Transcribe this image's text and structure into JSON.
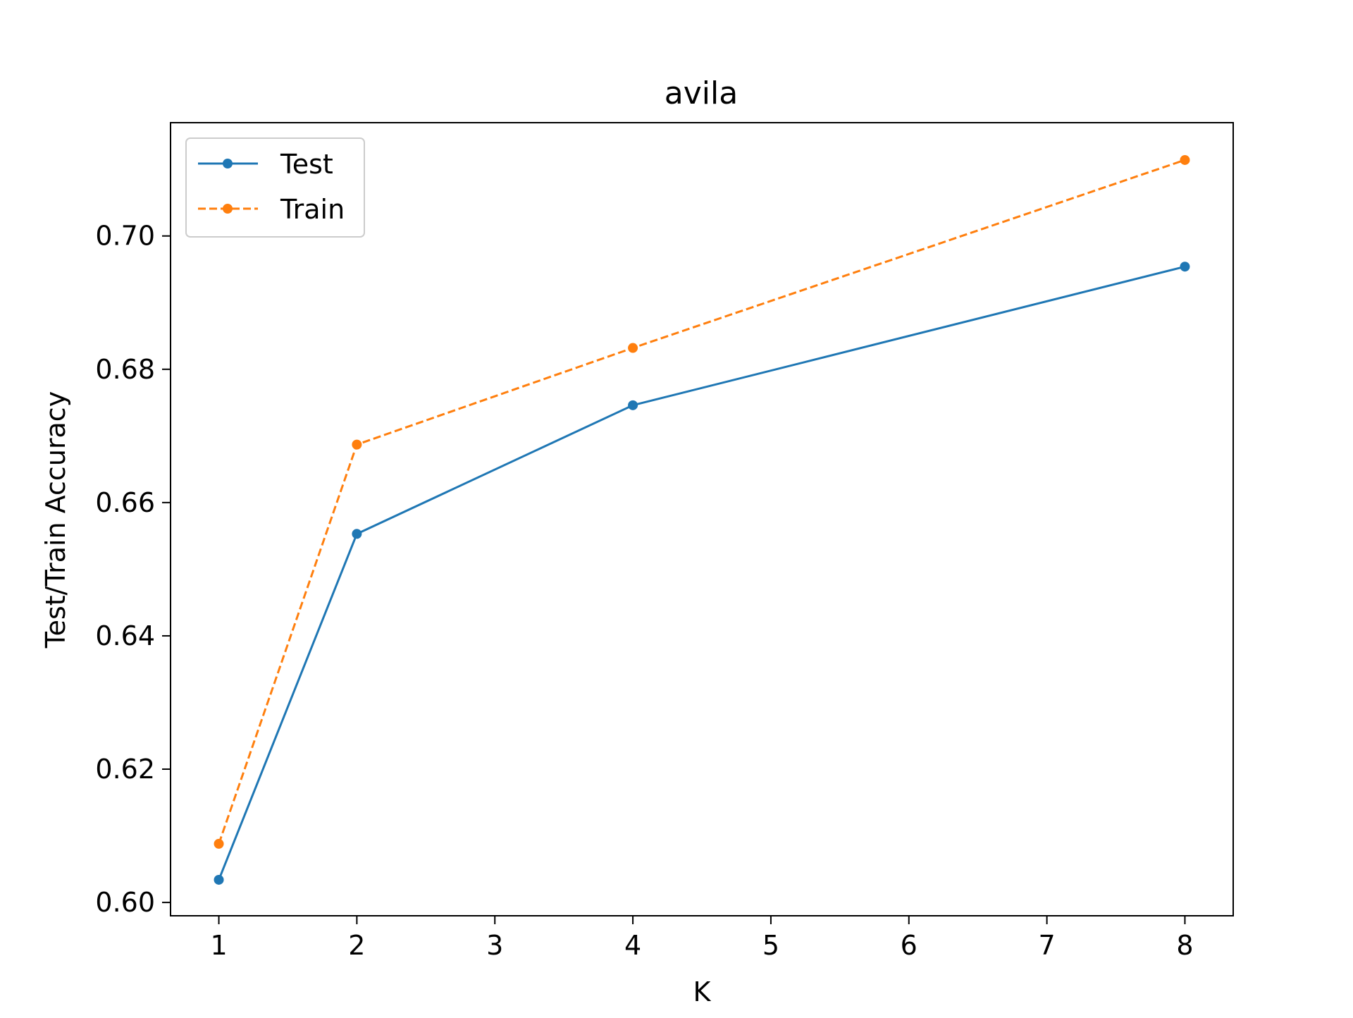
{
  "chart_data": {
    "type": "line",
    "title": "avila",
    "xlabel": "K",
    "ylabel": "Test/Train Accuracy",
    "xlim": [
      0.65,
      8.35
    ],
    "ylim": [
      0.598,
      0.717
    ],
    "xticks": [
      1,
      2,
      3,
      4,
      5,
      6,
      7,
      8
    ],
    "xtick_labels": [
      "1",
      "2",
      "3",
      "4",
      "5",
      "6",
      "7",
      "8"
    ],
    "yticks": [
      0.6,
      0.62,
      0.64,
      0.66,
      0.68,
      0.7
    ],
    "ytick_labels": [
      "0.60",
      "0.62",
      "0.64",
      "0.66",
      "0.68",
      "0.70"
    ],
    "grid": false,
    "legend_position": "upper-left",
    "series": [
      {
        "name": "Test",
        "x": [
          1,
          2,
          4,
          8
        ],
        "y": [
          0.6034,
          0.6553,
          0.6746,
          0.6954
        ],
        "color": "#1f77b4",
        "line_style": "solid",
        "marker": "circle"
      },
      {
        "name": "Train",
        "x": [
          1,
          2,
          4,
          8
        ],
        "y": [
          0.6088,
          0.6687,
          0.6832,
          0.7114
        ],
        "color": "#ff7f0e",
        "line_style": "dashed",
        "marker": "circle"
      }
    ]
  }
}
